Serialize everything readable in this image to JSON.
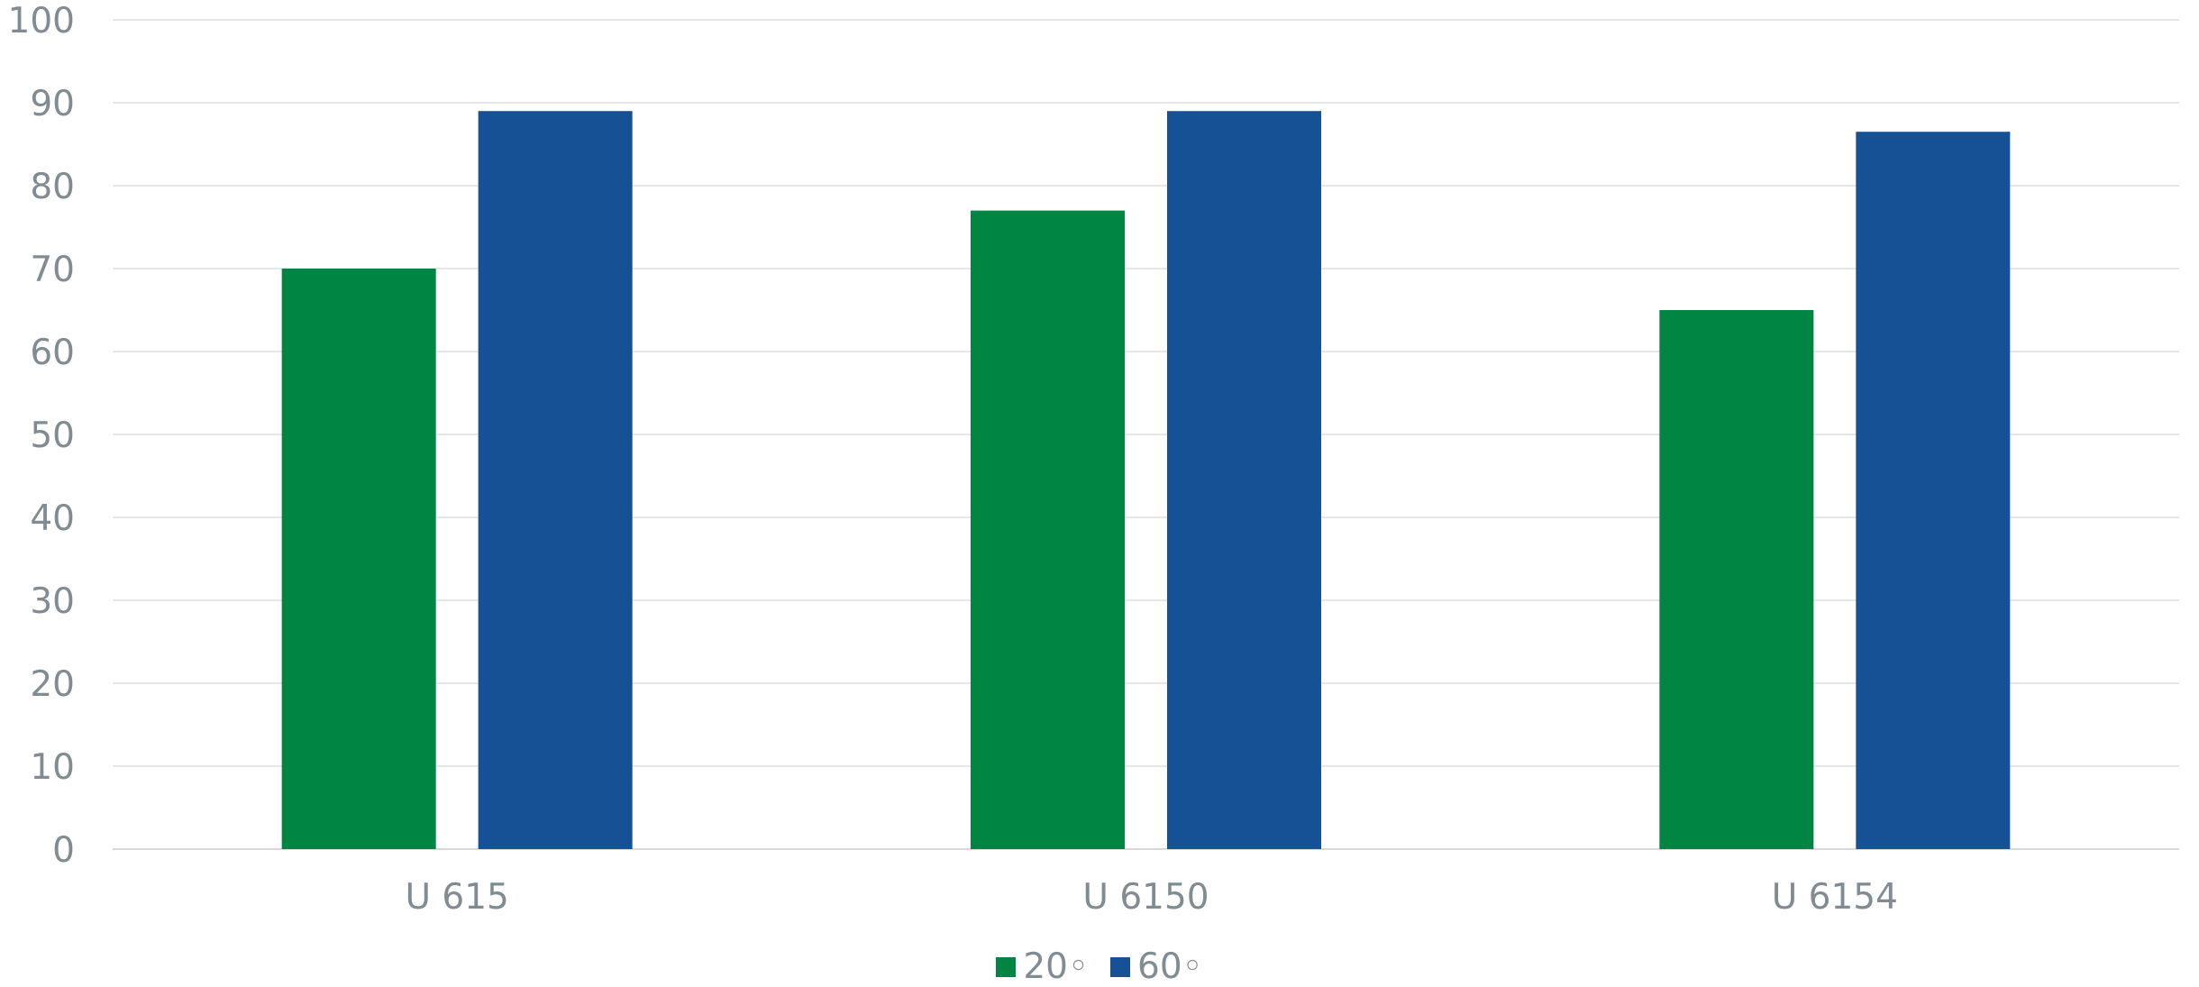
{
  "chart_data": {
    "type": "bar",
    "title": "",
    "xlabel": "",
    "ylabel": "",
    "categories": [
      "U 615",
      "U 6150",
      "U 6154"
    ],
    "series": [
      {
        "name": "20◦",
        "color": "#008542",
        "values": [
          70,
          77,
          65
        ]
      },
      {
        "name": "60◦",
        "color": "#165196",
        "values": [
          89,
          89,
          86.5
        ]
      }
    ],
    "ylim": [
      0,
      100
    ],
    "yticks": [
      0,
      10,
      20,
      30,
      40,
      50,
      60,
      70,
      80,
      90,
      100
    ],
    "grid": true,
    "legend_position": "bottom"
  },
  "legend": {
    "items": [
      {
        "label": "20◦",
        "color": "#008542"
      },
      {
        "label": "60◦",
        "color": "#165196"
      }
    ]
  }
}
